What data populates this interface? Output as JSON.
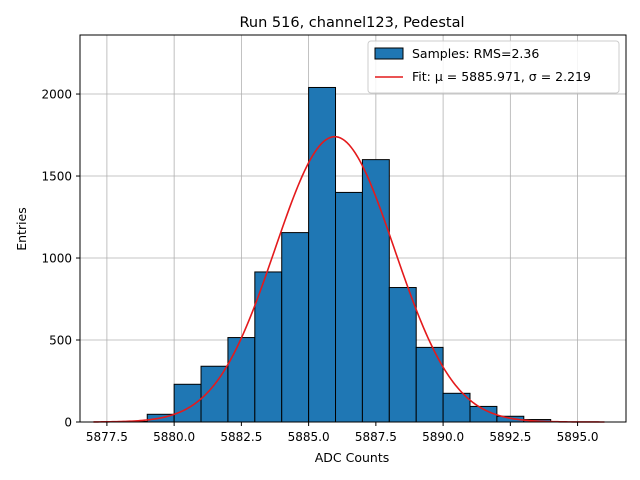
{
  "chart_data": {
    "type": "bar",
    "title": "Run 516, channel123, Pedestal",
    "xlabel": "ADC Counts",
    "ylabel": "Entries",
    "xlim": [
      5876.5,
      5896.8
    ],
    "ylim": [
      0,
      2360
    ],
    "grid": true,
    "legend_position": "top-right",
    "x_ticks": [
      5877.5,
      5880.0,
      5882.5,
      5885.0,
      5887.5,
      5890.0,
      5892.5,
      5895.0
    ],
    "x_tick_labels": [
      "5877.5",
      "5880.0",
      "5882.5",
      "5885.0",
      "5887.5",
      "5890.0",
      "5892.5",
      "5895.0"
    ],
    "y_ticks": [
      0,
      500,
      1000,
      1500,
      2000
    ],
    "y_tick_labels": [
      "0",
      "500",
      "1000",
      "1500",
      "2000"
    ],
    "histogram": {
      "name": "Samples: RMS=2.36",
      "color": "#1f77b4",
      "edge_color": "#000000",
      "bins": [
        {
          "x0": 5877.0,
          "x1": 5878.0,
          "count": 0
        },
        {
          "x0": 5878.0,
          "x1": 5879.0,
          "count": 3
        },
        {
          "x0": 5879.0,
          "x1": 5880.0,
          "count": 47
        },
        {
          "x0": 5880.0,
          "x1": 5881.0,
          "count": 230
        },
        {
          "x0": 5881.0,
          "x1": 5882.0,
          "count": 340
        },
        {
          "x0": 5882.0,
          "x1": 5883.0,
          "count": 515
        },
        {
          "x0": 5883.0,
          "x1": 5884.0,
          "count": 915
        },
        {
          "x0": 5884.0,
          "x1": 5885.0,
          "count": 1155
        },
        {
          "x0": 5885.0,
          "x1": 5886.0,
          "count": 2040
        },
        {
          "x0": 5886.0,
          "x1": 5887.0,
          "count": 1400
        },
        {
          "x0": 5887.0,
          "x1": 5888.0,
          "count": 1600
        },
        {
          "x0": 5888.0,
          "x1": 5889.0,
          "count": 820
        },
        {
          "x0": 5889.0,
          "x1": 5890.0,
          "count": 455
        },
        {
          "x0": 5890.0,
          "x1": 5891.0,
          "count": 175
        },
        {
          "x0": 5891.0,
          "x1": 5892.0,
          "count": 95
        },
        {
          "x0": 5892.0,
          "x1": 5893.0,
          "count": 35
        },
        {
          "x0": 5893.0,
          "x1": 5894.0,
          "count": 15
        }
      ]
    },
    "fit": {
      "name": "Fit: μ = 5885.971, σ = 2.219",
      "type": "gaussian",
      "mu": 5885.971,
      "sigma": 2.219,
      "amplitude": 1740,
      "x_range": [
        5877.0,
        5896.0
      ],
      "color": "#e41a1c"
    }
  }
}
